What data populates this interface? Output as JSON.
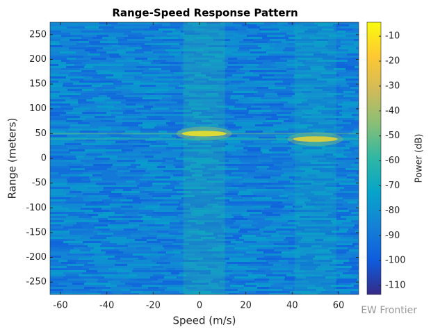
{
  "chart_data": {
    "type": "heatmap",
    "title": "Range-Speed Response Pattern",
    "xlabel": "Speed (m/s)",
    "ylabel": "Range (meters)",
    "colorbar_label": "Power (dB)",
    "xlim": [
      -64.5,
      68.7
    ],
    "xticks": [
      -60,
      -40,
      -20,
      0,
      20,
      40,
      60
    ],
    "ylim": [
      -275,
      275
    ],
    "yticks": [
      -250,
      -200,
      -150,
      -100,
      -50,
      0,
      50,
      100,
      150,
      200,
      250
    ],
    "clim": [
      -113.6,
      -4.4
    ],
    "cticks": [
      -110,
      -100,
      -90,
      -80,
      -70,
      -60,
      -50,
      -40,
      -30,
      -20,
      -10
    ],
    "colormap": [
      "#352a87",
      "#0f5cdd",
      "#1481d6",
      "#06a4ca",
      "#2eb7a4",
      "#87bf77",
      "#d1bb59",
      "#fec832",
      "#f9fb0e"
    ],
    "noise_floor": -85,
    "targets": [
      {
        "speed": 2,
        "range": 50,
        "power": -8
      },
      {
        "speed": 50,
        "range": 39,
        "power": -14
      }
    ],
    "watermark": "EW Frontier"
  }
}
